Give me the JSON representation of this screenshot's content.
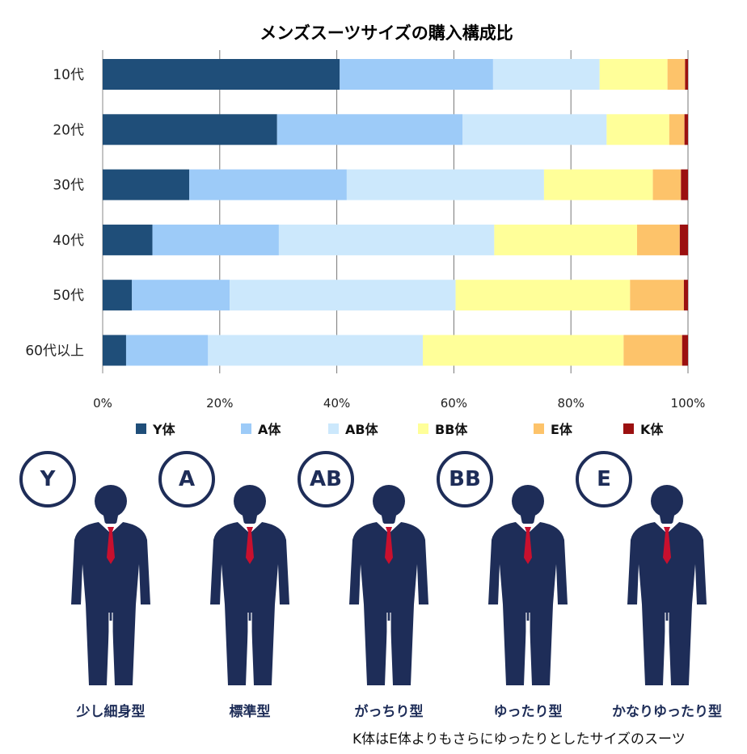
{
  "chart_data": {
    "type": "bar",
    "orientation": "horizontal",
    "stacked": true,
    "title": "メンズスーツサイズの購入構成比",
    "categories": [
      "10代",
      "20代",
      "30代",
      "40代",
      "50代",
      "60代以上"
    ],
    "series": [
      {
        "name": "Y体",
        "color": "#1f4e79",
        "values": [
          40.5,
          29.8,
          14.8,
          8.5,
          5.0,
          4.0
        ]
      },
      {
        "name": "A体",
        "color": "#9dcbf8",
        "values": [
          26.2,
          31.7,
          26.9,
          21.6,
          16.7,
          14.0
        ]
      },
      {
        "name": "AB体",
        "color": "#cce8fc",
        "values": [
          18.2,
          24.6,
          33.7,
          36.8,
          38.6,
          36.7
        ]
      },
      {
        "name": "BB体",
        "color": "#ffff99",
        "values": [
          11.6,
          10.7,
          18.6,
          24.4,
          29.8,
          34.3
        ]
      },
      {
        "name": "E体",
        "color": "#fdc36a",
        "values": [
          3.0,
          2.6,
          4.8,
          7.3,
          9.2,
          10.0
        ]
      },
      {
        "name": "K体",
        "color": "#9b1010",
        "values": [
          0.5,
          0.6,
          1.2,
          1.4,
          0.7,
          1.0
        ]
      }
    ],
    "xlim": [
      0,
      100
    ],
    "x_ticks": [
      "0%",
      "20%",
      "40%",
      "60%",
      "80%",
      "100%"
    ],
    "grid": true,
    "legend_position": "bottom"
  },
  "figures": [
    {
      "badge": "Y",
      "label": "少し細身型"
    },
    {
      "badge": "A",
      "label": "標準型"
    },
    {
      "badge": "AB",
      "label": "がっちり型"
    },
    {
      "badge": "BB",
      "label": "ゆったり型"
    },
    {
      "badge": "E",
      "label": "かなりゆったり型"
    }
  ],
  "colors": {
    "suit": "#1e2d58",
    "tie": "#c8102e",
    "badge_border": "#1e2d58"
  },
  "footnote": "K体はE体よりもさらにゆったりとしたサイズのスーツ"
}
